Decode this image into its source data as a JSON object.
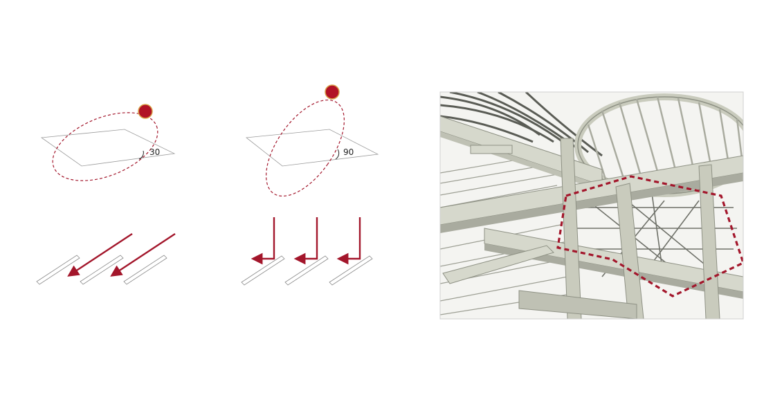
{
  "colors": {
    "accent": "#a3162b",
    "sun_fill": "#b11226",
    "sun_ring": "#d9a24a",
    "plane_stroke": "#9a9a9a",
    "beam_light": "#d6d8cc",
    "beam_mid": "#bfc1b4",
    "beam_dark": "#8e9184",
    "deep_shadow": "#4b4d47",
    "sky": "#ffffff"
  },
  "diagrams": [
    {
      "angle_label": "30",
      "sun_icon": "sun-icon",
      "arrow_icon": "diagonal-arrow-icon"
    },
    {
      "angle_label": "90",
      "sun_icon": "sun-icon",
      "arrow_icon": "right-angle-arrow-icon"
    }
  ],
  "render": {
    "highlight_icon": "dashed-hexagon-highlight"
  }
}
